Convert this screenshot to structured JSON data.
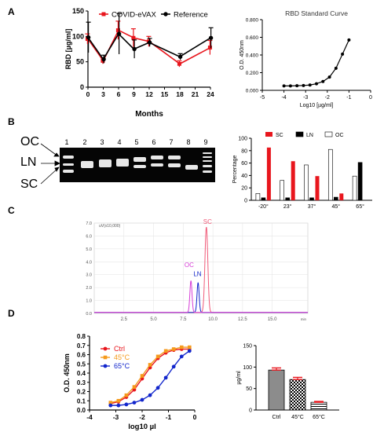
{
  "panels": {
    "A": "A",
    "B": "B",
    "C": "C",
    "D": "D"
  },
  "colors": {
    "red": "#e8161d",
    "black": "#000000",
    "blue": "#1226cc",
    "orange": "#f59a1c",
    "magenta": "#d63cd6",
    "pink": "#f05a78",
    "grey": "#8c8c8c"
  },
  "gel": {
    "lane_numbers": [
      "1",
      "2",
      "3",
      "4",
      "5",
      "6",
      "7",
      "8",
      "9"
    ],
    "labels": {
      "oc": "OC",
      "ln": "LN",
      "sc": "SC"
    }
  },
  "chart_data": [
    {
      "id": "A-left",
      "type": "line",
      "xlabel": "Months",
      "ylabel": "RBD [µg/ml]",
      "x": [
        0,
        3,
        6,
        9,
        12,
        18,
        24
      ],
      "xticks": [
        "0",
        "3",
        "6",
        "9",
        "12",
        "15",
        "18",
        "21",
        "24"
      ],
      "xlim": [
        0,
        24
      ],
      "ylim": [
        0,
        150
      ],
      "yticks": [
        "0",
        "50",
        "100",
        "150"
      ],
      "series": [
        {
          "name": "COVID-eVAX",
          "color": "#e8161d",
          "values": [
            95,
            52,
            112,
            97,
            90,
            46,
            78
          ],
          "err": [
            10,
            6,
            18,
            18,
            10,
            6,
            14
          ]
        },
        {
          "name": "Reference",
          "color": "#000000",
          "values": [
            98,
            55,
            105,
            75,
            88,
            60,
            97
          ],
          "err": [
            30,
            8,
            40,
            18,
            8,
            6,
            20
          ]
        }
      ]
    },
    {
      "id": "A-right",
      "type": "line",
      "title": "RBD Standard Curve",
      "xlabel": "Log10 [µg/ml]",
      "ylabel": "O.D. 450nm",
      "xlim": [
        -5,
        0
      ],
      "ylim": [
        0,
        0.8
      ],
      "xticks": [
        "-5",
        "-4",
        "-3",
        "-2",
        "-1",
        "0"
      ],
      "yticks": [
        "0.000",
        "0.200",
        "0.400",
        "0.600",
        "0.800"
      ],
      "series": [
        {
          "name": "",
          "color": "#000000",
          "x": [
            -4.0,
            -3.7,
            -3.4,
            -3.1,
            -2.8,
            -2.5,
            -2.2,
            -1.9,
            -1.6,
            -1.3,
            -1.0
          ],
          "values": [
            0.05,
            0.05,
            0.052,
            0.055,
            0.06,
            0.075,
            0.1,
            0.15,
            0.25,
            0.41,
            0.57
          ]
        }
      ]
    },
    {
      "id": "B-right",
      "type": "bar",
      "ylabel": "Percentage",
      "categories": [
        "-20°",
        "23°",
        "37°",
        "45°",
        "65°"
      ],
      "ylim": [
        0,
        100
      ],
      "yticks": [
        "0",
        "20",
        "40",
        "60",
        "80",
        "100"
      ],
      "series": [
        {
          "name": "OC",
          "color": "#ffffff",
          "values": [
            11,
            32,
            57,
            82,
            39
          ]
        },
        {
          "name": "LN",
          "color": "#000000",
          "values": [
            4,
            4,
            4,
            5,
            61
          ]
        },
        {
          "name": "SC",
          "color": "#e8161d",
          "values": [
            85,
            63,
            39,
            11,
            0
          ]
        }
      ],
      "legend_order": [
        "SC",
        "LN",
        "OC"
      ]
    },
    {
      "id": "C",
      "type": "line",
      "ylabel": "uV(x10,000)",
      "xlabel": "min",
      "xlim": [
        0,
        18
      ],
      "ylim": [
        0,
        7
      ],
      "xticks": [
        "2.5",
        "5.0",
        "7.5",
        "10.0",
        "12.5",
        "15.0"
      ],
      "yticks": [
        "0.0",
        "1.0",
        "2.0",
        "3.0",
        "4.0",
        "5.0",
        "6.0",
        "7.0"
      ],
      "series": [
        {
          "name": "SC",
          "color": "#f05a78",
          "peak_time": 9.45,
          "peak_height": 6.6
        },
        {
          "name": "LN",
          "color": "#1226cc",
          "peak_time": 8.75,
          "peak_height": 2.3
        },
        {
          "name": "OC",
          "color": "#d63cd6",
          "peak_time": 8.15,
          "peak_height": 2.45
        }
      ]
    },
    {
      "id": "D-left",
      "type": "line",
      "xlabel": "log10 µl",
      "ylabel": "O.D. 450nm",
      "xlim": [
        -4,
        0
      ],
      "ylim": [
        0,
        0.8
      ],
      "xticks": [
        "-4",
        "-3",
        "-2",
        "-1",
        "0"
      ],
      "yticks": [
        "0.0",
        "0.1",
        "0.2",
        "0.3",
        "0.4",
        "0.5",
        "0.6",
        "0.7",
        "0.8"
      ],
      "series": [
        {
          "name": "Ctrl",
          "color": "#e8161d",
          "x": [
            -3.2,
            -2.9,
            -2.6,
            -2.3,
            -2.0,
            -1.7,
            -1.4,
            -1.1,
            -0.8,
            -0.5,
            -0.2
          ],
          "values": [
            0.07,
            0.09,
            0.14,
            0.22,
            0.34,
            0.46,
            0.56,
            0.62,
            0.65,
            0.66,
            0.66
          ]
        },
        {
          "name": "45°C",
          "color": "#f59a1c",
          "x": [
            -3.2,
            -2.9,
            -2.6,
            -2.3,
            -2.0,
            -1.7,
            -1.4,
            -1.1,
            -0.8,
            -0.5,
            -0.2
          ],
          "values": [
            0.08,
            0.1,
            0.16,
            0.25,
            0.37,
            0.49,
            0.58,
            0.64,
            0.66,
            0.68,
            0.68
          ]
        },
        {
          "name": "65°C",
          "color": "#1226cc",
          "x": [
            -3.2,
            -2.9,
            -2.6,
            -2.3,
            -2.0,
            -1.7,
            -1.4,
            -1.1,
            -0.8,
            -0.5,
            -0.2
          ],
          "values": [
            0.05,
            0.05,
            0.06,
            0.08,
            0.11,
            0.16,
            0.24,
            0.35,
            0.47,
            0.58,
            0.64
          ]
        }
      ]
    },
    {
      "id": "D-right",
      "type": "bar",
      "ylabel": "µg/ml",
      "categories": [
        "Ctrl",
        "45°C",
        "65°C"
      ],
      "ylim": [
        0,
        150
      ],
      "yticks": [
        "0",
        "50",
        "100",
        "150"
      ],
      "values": [
        93,
        71,
        18
      ],
      "err": [
        5,
        5,
        2
      ],
      "fills": [
        "grey",
        "checker",
        "stripes"
      ]
    }
  ]
}
